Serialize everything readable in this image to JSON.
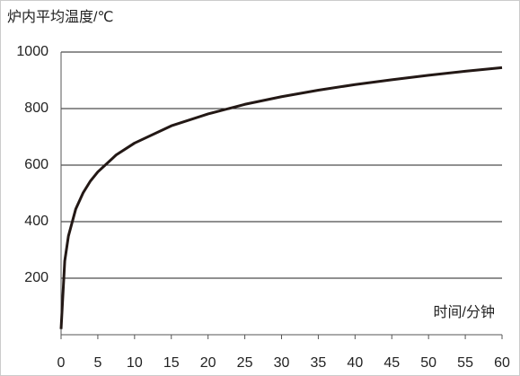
{
  "chart_data": {
    "type": "line",
    "y_label": "炉内平均温度/℃",
    "x_label": "时间/分钟",
    "x": [
      0,
      0.5,
      1,
      2,
      3,
      4,
      5,
      7.5,
      10,
      15,
      20,
      25,
      30,
      35,
      40,
      45,
      50,
      55,
      60
    ],
    "series": [
      {
        "color": "#231815",
        "values": [
          20,
          261,
          349,
          445,
          502,
          544,
          576,
          636,
          678,
          739,
          781,
          815,
          842,
          865,
          885,
          902,
          918,
          932,
          945
        ]
      }
    ],
    "xlim": [
      0,
      60
    ],
    "xticks": [
      0,
      5,
      10,
      15,
      20,
      25,
      30,
      35,
      40,
      45,
      50,
      55,
      60
    ],
    "ylim": [
      0,
      1000
    ],
    "yticks": [
      200,
      400,
      600,
      800,
      1000
    ],
    "grid": true
  }
}
